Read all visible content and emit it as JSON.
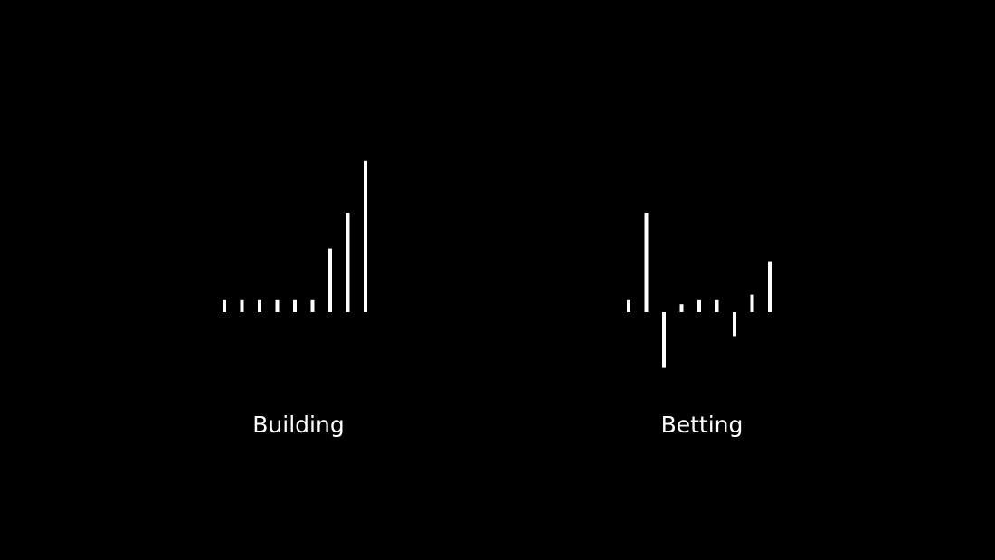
{
  "colors": {
    "background": "#000000",
    "bar": "#ffffff",
    "text": "#ffffff"
  },
  "chart_data": [
    {
      "type": "bar",
      "title": "Building",
      "baseline": 0,
      "ylim": [
        -7,
        19
      ],
      "grid": false,
      "legend": "none",
      "values": [
        1.5,
        1.5,
        1.5,
        1.5,
        1.5,
        1.5,
        8,
        12.5,
        19
      ]
    },
    {
      "type": "bar",
      "title": "Betting",
      "baseline": 0,
      "ylim": [
        -7,
        19
      ],
      "grid": false,
      "legend": "none",
      "values": [
        1.5,
        12.5,
        -7,
        1,
        1.5,
        1.5,
        -3,
        2.2,
        6.3
      ]
    }
  ]
}
